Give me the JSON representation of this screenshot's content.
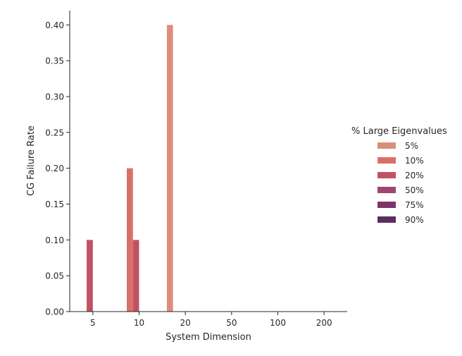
{
  "chart_data": {
    "type": "bar",
    "title": "",
    "xlabel": "System Dimension",
    "ylabel": "CG Failure Rate",
    "categories": [
      "5",
      "10",
      "20",
      "50",
      "100",
      "200"
    ],
    "ylim": [
      0,
      0.42
    ],
    "yticks": [
      "0.00",
      "0.05",
      "0.10",
      "0.15",
      "0.20",
      "0.25",
      "0.30",
      "0.35",
      "0.40"
    ],
    "legend": {
      "title": "% Large Eigenvalues",
      "placement": "right"
    },
    "grid": false,
    "series": [
      {
        "name": "5%",
        "color": "#d9907a",
        "values": [
          0,
          0,
          0.4,
          0,
          0,
          0
        ]
      },
      {
        "name": "10%",
        "color": "#d97068",
        "values": [
          0,
          0.2,
          0,
          0,
          0,
          0
        ]
      },
      {
        "name": "20%",
        "color": "#bf5364",
        "values": [
          0.1,
          0.1,
          0,
          0,
          0,
          0
        ]
      },
      {
        "name": "50%",
        "color": "#a1456e",
        "values": [
          0,
          0,
          0,
          0,
          0,
          0
        ]
      },
      {
        "name": "75%",
        "color": "#7d346a",
        "values": [
          0,
          0,
          0,
          0,
          0,
          0
        ]
      },
      {
        "name": "90%",
        "color": "#5b2d60",
        "values": [
          0,
          0,
          0,
          0,
          0,
          0
        ]
      }
    ]
  }
}
